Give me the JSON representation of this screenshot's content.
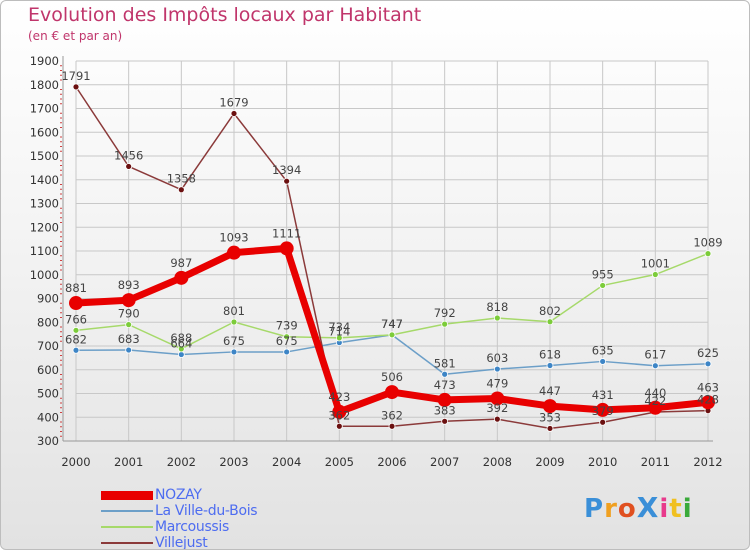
{
  "header": {
    "title": "Evolution des Impôts locaux par Habitant",
    "subtitle": "(en € et par an)"
  },
  "colors": {
    "title": "#c0356b",
    "grid": "#c8c8c8",
    "axis_text": "#333333",
    "label_text": "#444444"
  },
  "logo": {
    "text": "ProXiti",
    "letters": [
      "P",
      "r",
      "o",
      "X",
      "i",
      "t",
      "i"
    ],
    "letter_colors": [
      "#3a8fd8",
      "#f0a020",
      "#e05020",
      "#3a8fd8",
      "#e83a8c",
      "#f0c020",
      "#3aaa3a"
    ]
  },
  "chart_data": {
    "type": "line",
    "title": "Evolution des Impôts locaux par Habitant",
    "subtitle": "(en € et par an)",
    "categories": [
      "2000",
      "2001",
      "2002",
      "2003",
      "2004",
      "2005",
      "2006",
      "2007",
      "2008",
      "2009",
      "2010",
      "2011",
      "2012"
    ],
    "ylim": [
      300,
      1900
    ],
    "yticks": [
      300,
      400,
      500,
      600,
      700,
      800,
      900,
      1000,
      1100,
      1200,
      1300,
      1400,
      1500,
      1600,
      1700,
      1800,
      1900
    ],
    "grid": true,
    "legend_position": "bottom-left",
    "series": [
      {
        "name": "NOZAY",
        "color": "#e80000",
        "marker": "#e80000",
        "width": 7,
        "radius": 7,
        "values": [
          881,
          893,
          987,
          1093,
          1111,
          423,
          506,
          473,
          479,
          447,
          431,
          440,
          463
        ],
        "labels": [
          "881",
          "893",
          "987",
          "1093",
          "1111",
          "423",
          "506",
          "473",
          "479",
          "447",
          "431",
          "440",
          "463"
        ]
      },
      {
        "name": "La Ville-du-Bois",
        "color": "#6c9fc8",
        "marker": "#3d85c6",
        "width": 1.5,
        "radius": 3,
        "values": [
          682,
          683,
          664,
          675,
          675,
          714,
          747,
          581,
          603,
          618,
          635,
          617,
          625
        ],
        "labels": [
          "682",
          "683",
          "664",
          "675",
          "675",
          "714",
          "747",
          "581",
          "603",
          "618",
          "635",
          "617",
          "625"
        ]
      },
      {
        "name": "Marcoussis",
        "color": "#a6d96a",
        "marker": "#7ccc3a",
        "width": 1.5,
        "radius": 3,
        "values": [
          766,
          790,
          688,
          801,
          739,
          734,
          747,
          792,
          818,
          802,
          955,
          1001,
          1089
        ],
        "labels": [
          "766",
          "790",
          "688",
          "801",
          "739",
          "734",
          "747",
          "792",
          "818",
          "802",
          "955",
          "1001",
          "1089"
        ]
      },
      {
        "name": "Villejust",
        "color": "#8b3a3a",
        "marker": "#6b1010",
        "width": 1.5,
        "radius": 3,
        "values": [
          1791,
          1456,
          1358,
          1679,
          1394,
          362,
          362,
          383,
          392,
          353,
          379,
          422,
          428
        ],
        "labels": [
          "1791",
          "1456",
          "1358",
          "1679",
          "1394",
          "362",
          "362",
          "383",
          "392",
          "353",
          "379",
          "422",
          "428"
        ]
      }
    ]
  }
}
